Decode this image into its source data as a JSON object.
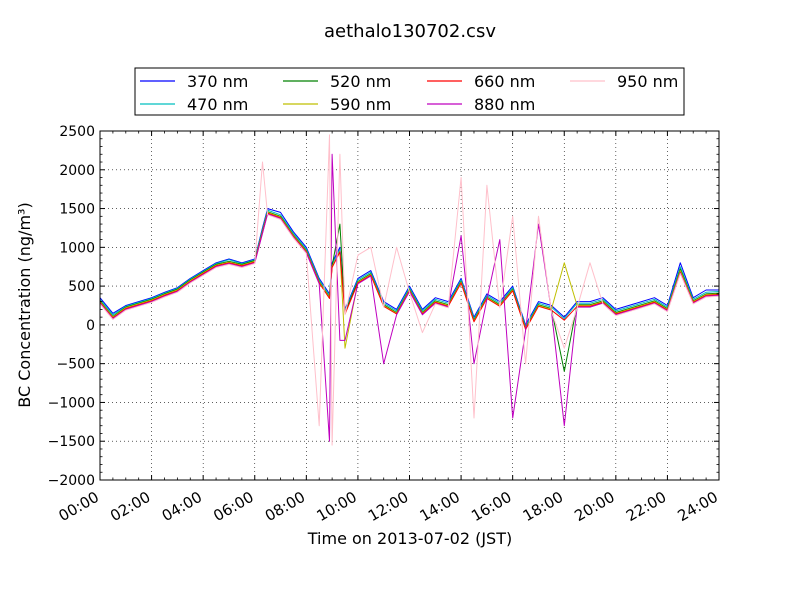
{
  "chart_data": {
    "type": "line",
    "title": "aethalo130702.csv",
    "xlabel": "Time on 2013-07-02 (JST)",
    "ylabel": "BC Concentration (ng/m³)",
    "xlim": [
      "00:00",
      "24:00"
    ],
    "ylim": [
      -2000,
      2500
    ],
    "grid": true,
    "legend_position": "top",
    "x_ticks": [
      "00:00",
      "02:00",
      "04:00",
      "06:00",
      "08:00",
      "10:00",
      "12:00",
      "14:00",
      "16:00",
      "18:00",
      "20:00",
      "22:00",
      "24:00"
    ],
    "y_ticks": [
      "2500",
      "2000",
      "1500",
      "1000",
      "500",
      "0",
      "−500",
      "−1000",
      "−1500",
      "−2000"
    ],
    "x_hours": [
      0,
      0.5,
      1,
      1.5,
      2,
      2.5,
      3,
      3.5,
      4,
      4.5,
      5,
      5.5,
      6,
      6.3,
      6.5,
      7,
      7.5,
      8,
      8.5,
      8.9,
      9,
      9.3,
      9.5,
      10,
      10.5,
      11,
      11.5,
      12,
      12.5,
      13,
      13.5,
      14,
      14.5,
      15,
      15.5,
      16,
      16.5,
      17,
      17.5,
      18,
      18.5,
      19,
      19.5,
      20,
      20.5,
      21,
      21.5,
      22,
      22.5,
      23,
      23.5,
      24
    ],
    "series": [
      {
        "name": "370 nm",
        "color": "#0000ff",
        "values": [
          350,
          150,
          250,
          300,
          350,
          420,
          480,
          600,
          700,
          800,
          850,
          800,
          850,
          1250,
          1500,
          1450,
          1200,
          1000,
          600,
          400,
          800,
          1000,
          200,
          600,
          700,
          300,
          200,
          500,
          200,
          350,
          300,
          600,
          100,
          400,
          300,
          500,
          0,
          300,
          250,
          100,
          300,
          300,
          350,
          200,
          250,
          300,
          350,
          250,
          800,
          350,
          450,
          450
        ]
      },
      {
        "name": "470 nm",
        "color": "#00bfbf",
        "values": [
          330,
          130,
          240,
          290,
          340,
          410,
          470,
          590,
          690,
          790,
          840,
          790,
          840,
          1230,
          1480,
          1420,
          1180,
          980,
          580,
          380,
          780,
          970,
          180,
          580,
          680,
          280,
          180,
          480,
          180,
          330,
          280,
          580,
          80,
          380,
          280,
          480,
          -20,
          280,
          230,
          80,
          280,
          280,
          330,
          180,
          230,
          280,
          330,
          230,
          750,
          330,
          420,
          430
        ]
      },
      {
        "name": "520 nm",
        "color": "#008000",
        "values": [
          310,
          110,
          230,
          280,
          330,
          400,
          460,
          580,
          680,
          780,
          820,
          780,
          830,
          1210,
          1460,
          1400,
          1160,
          960,
          560,
          360,
          760,
          1300,
          160,
          560,
          660,
          260,
          160,
          460,
          160,
          310,
          260,
          560,
          60,
          360,
          260,
          460,
          -40,
          260,
          210,
          -600,
          260,
          260,
          310,
          160,
          210,
          260,
          310,
          210,
          720,
          310,
          400,
          410
        ]
      },
      {
        "name": "590 nm",
        "color": "#bfbf00",
        "values": [
          300,
          100,
          220,
          270,
          320,
          390,
          450,
          570,
          670,
          770,
          810,
          770,
          820,
          1200,
          1450,
          1390,
          1150,
          950,
          550,
          350,
          750,
          950,
          -300,
          550,
          650,
          250,
          150,
          450,
          150,
          300,
          250,
          550,
          50,
          350,
          250,
          450,
          -50,
          250,
          200,
          800,
          250,
          250,
          300,
          150,
          200,
          250,
          300,
          200,
          700,
          300,
          390,
          400
        ]
      },
      {
        "name": "660 nm",
        "color": "#ff0000",
        "values": [
          290,
          90,
          210,
          260,
          310,
          380,
          440,
          560,
          660,
          760,
          800,
          760,
          810,
          1190,
          1440,
          1380,
          1140,
          940,
          540,
          340,
          740,
          940,
          140,
          540,
          640,
          240,
          140,
          440,
          140,
          290,
          240,
          540,
          40,
          340,
          240,
          440,
          -60,
          240,
          190,
          60,
          240,
          240,
          290,
          140,
          190,
          240,
          290,
          190,
          680,
          290,
          380,
          390
        ]
      },
      {
        "name": "880 nm",
        "color": "#bf00bf",
        "values": [
          280,
          80,
          200,
          250,
          300,
          370,
          430,
          550,
          650,
          750,
          790,
          750,
          800,
          1180,
          1430,
          1370,
          1130,
          930,
          530,
          -1500,
          2200,
          -200,
          -200,
          530,
          630,
          -500,
          130,
          430,
          130,
          280,
          230,
          1150,
          -500,
          330,
          1100,
          -1200,
          -70,
          1300,
          180,
          -1300,
          230,
          230,
          280,
          130,
          180,
          230,
          280,
          180,
          670,
          280,
          370,
          380
        ]
      },
      {
        "name": "950 nm",
        "color": "#ffc0cb",
        "values": [
          270,
          70,
          190,
          240,
          290,
          360,
          420,
          540,
          640,
          740,
          780,
          740,
          790,
          2100,
          1420,
          1360,
          1120,
          920,
          -1300,
          2450,
          -1550,
          2200,
          130,
          900,
          1000,
          230,
          1000,
          420,
          -100,
          270,
          220,
          1900,
          -1200,
          1800,
          220,
          1400,
          -500,
          1400,
          170,
          -300,
          220,
          800,
          270,
          120,
          170,
          220,
          270,
          170,
          660,
          270,
          360,
          370
        ]
      }
    ]
  }
}
